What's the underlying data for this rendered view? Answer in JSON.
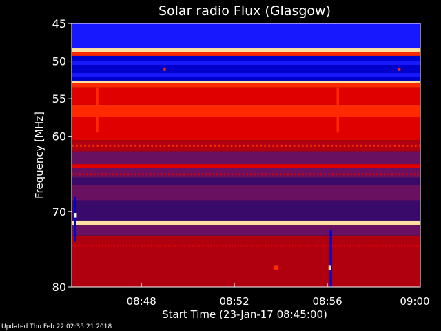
{
  "footer": {
    "updated": "Updated Thu Feb 22 02:35:21 2018"
  },
  "chart_data": {
    "type": "heatmap",
    "title": "Solar radio Flux (Glasgow)",
    "xlabel": "Start Time (23-Jan-17 08:45:00)",
    "ylabel": "Frequency [MHz]",
    "x_range_minutes_after_start": [
      0,
      15
    ],
    "xlim": [
      "08:45",
      "09:00"
    ],
    "ylim": [
      45,
      80
    ],
    "y_ticks": [
      {
        "value": 45,
        "label": "45"
      },
      {
        "value": 50,
        "label": "50"
      },
      {
        "value": 55,
        "label": "55"
      },
      {
        "value": 60,
        "label": "60"
      },
      {
        "value": 70,
        "label": "70"
      },
      {
        "value": 80,
        "label": "80"
      }
    ],
    "x_ticks": [
      {
        "value": "08:48",
        "label": "08:48"
      },
      {
        "value": "08:52",
        "label": "08:52"
      },
      {
        "value": "08:56",
        "label": "08:56"
      },
      {
        "value": "09:00",
        "label": "09:00"
      }
    ],
    "grid": false,
    "colors": {
      "background": "#000000",
      "low": "#0000cc",
      "mid_blue": "#1818ff",
      "dark_purple": "#3a0a6a",
      "purple": "#6a1060",
      "dark_red": "#b00010",
      "red": "#e00000",
      "bright_red": "#ff2a00",
      "high": "#ffe0a0",
      "white": "#ffffff"
    },
    "bands": [
      {
        "from": 45.0,
        "to": 48.3,
        "level": "mid_blue"
      },
      {
        "from": 48.3,
        "to": 48.8,
        "level": "high"
      },
      {
        "from": 48.8,
        "to": 49.3,
        "level": "bright_red"
      },
      {
        "from": 49.3,
        "to": 50.0,
        "level": "low"
      },
      {
        "from": 50.0,
        "to": 50.5,
        "level": "mid_blue"
      },
      {
        "from": 50.5,
        "to": 51.6,
        "level": "low"
      },
      {
        "from": 51.6,
        "to": 52.1,
        "level": "mid_blue"
      },
      {
        "from": 52.1,
        "to": 52.6,
        "level": "low"
      },
      {
        "from": 52.6,
        "to": 52.9,
        "level": "high"
      },
      {
        "from": 52.9,
        "to": 53.5,
        "level": "bright_red"
      },
      {
        "from": 53.5,
        "to": 55.8,
        "level": "red"
      },
      {
        "from": 55.8,
        "to": 57.4,
        "level": "bright_red"
      },
      {
        "from": 57.4,
        "to": 60.5,
        "level": "red"
      },
      {
        "from": 60.5,
        "to": 62.0,
        "level": "dark_red"
      },
      {
        "from": 62.0,
        "to": 63.7,
        "level": "purple"
      },
      {
        "from": 63.7,
        "to": 64.2,
        "level": "red"
      },
      {
        "from": 64.2,
        "to": 65.5,
        "level": "purple"
      },
      {
        "from": 65.5,
        "to": 66.5,
        "level": "dark_purple"
      },
      {
        "from": 66.5,
        "to": 68.5,
        "level": "purple"
      },
      {
        "from": 68.5,
        "to": 71.2,
        "level": "dark_purple"
      },
      {
        "from": 71.2,
        "to": 71.8,
        "level": "high"
      },
      {
        "from": 71.8,
        "to": 73.2,
        "level": "purple"
      },
      {
        "from": 73.2,
        "to": 80.0,
        "level": "dark_red"
      }
    ],
    "dashed_lines": [
      {
        "at": 49.0,
        "level": "bright_red",
        "dash_minutes": 0.14,
        "gap_minutes": 0.14
      },
      {
        "at": 61.2,
        "level": "bright_red",
        "dash_minutes": 0.08,
        "gap_minutes": 0.1
      },
      {
        "at": 65.0,
        "level": "red",
        "dash_minutes": 0.06,
        "gap_minutes": 0.1
      },
      {
        "at": 74.5,
        "level": "red",
        "dash_minutes": 0.05,
        "gap_minutes": 0.08
      },
      {
        "at": 77.0,
        "level": "dark_red",
        "dash_minutes": 0.05,
        "gap_minutes": 0.09
      }
    ],
    "features": [
      {
        "name": "vertical-streak-0845",
        "x_start": 0.1,
        "x_end": 0.2,
        "y_from": 68.0,
        "y_to": 74.0,
        "level": "low"
      },
      {
        "name": "vertical-streak-0856",
        "x_start": 11.1,
        "x_end": 11.2,
        "y_from": 72.5,
        "y_to": 80.0,
        "level": "low"
      },
      {
        "name": "spike-0846-a",
        "x_start": 1.05,
        "x_end": 1.15,
        "y_from": 53.5,
        "y_to": 59.5,
        "level": "bright_red"
      },
      {
        "name": "spike-0856-a",
        "x_start": 11.4,
        "x_end": 11.5,
        "y_from": 53.5,
        "y_to": 59.5,
        "level": "bright_red"
      },
      {
        "name": "spot-0849",
        "x_start": 3.95,
        "x_end": 4.05,
        "y_from": 50.9,
        "y_to": 51.3,
        "level": "bright_red"
      },
      {
        "name": "spot-0859",
        "x_start": 14.05,
        "x_end": 14.15,
        "y_from": 50.9,
        "y_to": 51.3,
        "level": "bright_red"
      },
      {
        "name": "spot-0845-white",
        "x_start": 0.12,
        "x_end": 0.22,
        "y_from": 70.2,
        "y_to": 70.8,
        "level": "white"
      },
      {
        "name": "spot-0856-white",
        "x_start": 11.05,
        "x_end": 11.15,
        "y_from": 77.2,
        "y_to": 77.8,
        "level": "high"
      },
      {
        "name": "spot-0854",
        "x_start": 8.7,
        "x_end": 8.9,
        "y_from": 77.2,
        "y_to": 77.7,
        "level": "bright_red"
      }
    ]
  }
}
